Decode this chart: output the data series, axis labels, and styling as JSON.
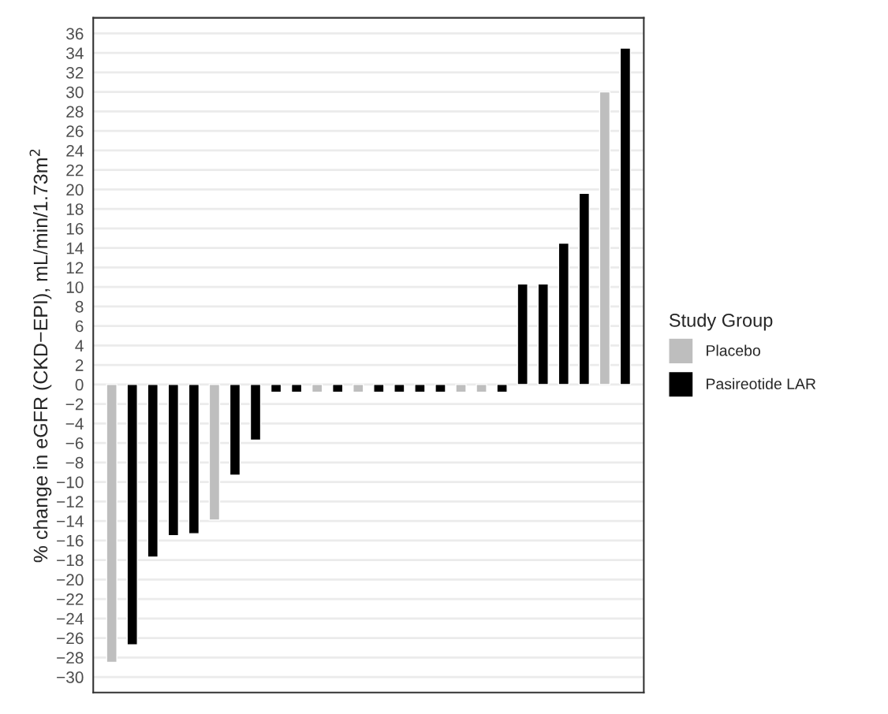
{
  "chart_data": {
    "type": "bar",
    "ylabel": "% change in eGFR (CKD−EPI), mL/min/1.73m$^{2}$",
    "legend_title": "Study Group",
    "categories": [
      null,
      null,
      null,
      null,
      null,
      null,
      null,
      null,
      null,
      null,
      null,
      null,
      null,
      null,
      null,
      null,
      null,
      null,
      null,
      null,
      null,
      null,
      null,
      null,
      null,
      null
    ],
    "series": [
      {
        "name": "Placebo",
        "color": "#bebebe",
        "values": [
          -28.5,
          null,
          null,
          null,
          null,
          -13.9,
          null,
          null,
          null,
          null,
          -0.8,
          null,
          -0.8,
          null,
          null,
          null,
          null,
          -0.8,
          -0.8,
          null,
          null,
          null,
          null,
          null,
          30.0,
          null
        ]
      },
      {
        "name": "Pasireotide LAR",
        "color": "#000000",
        "values": [
          null,
          -26.7,
          -17.7,
          -15.5,
          -15.3,
          null,
          -9.3,
          -5.7,
          -0.8,
          -0.8,
          null,
          -0.8,
          null,
          -0.8,
          -0.8,
          -0.8,
          -0.8,
          null,
          null,
          -0.8,
          10.3,
          10.3,
          14.5,
          19.6,
          null,
          34.5
        ]
      }
    ],
    "ylim": [
      -31.6,
      37.6
    ],
    "yticks": [
      {
        "value": -30,
        "label": "−30"
      },
      {
        "value": -28,
        "label": "−28"
      },
      {
        "value": -26,
        "label": "−26"
      },
      {
        "value": -24,
        "label": "−24"
      },
      {
        "value": -22,
        "label": "−22"
      },
      {
        "value": -20,
        "label": "−20"
      },
      {
        "value": -18,
        "label": "−18"
      },
      {
        "value": -16,
        "label": "−16"
      },
      {
        "value": -14,
        "label": "−14"
      },
      {
        "value": -12,
        "label": "−12"
      },
      {
        "value": -10,
        "label": "−10"
      },
      {
        "value": -8,
        "label": "−8"
      },
      {
        "value": -6,
        "label": "−6"
      },
      {
        "value": -4,
        "label": "−4"
      },
      {
        "value": -2,
        "label": "−2"
      },
      0,
      2,
      4,
      6,
      8,
      10,
      12,
      14,
      16,
      18,
      20,
      22,
      24,
      26,
      28,
      30,
      32,
      34,
      36
    ],
    "grid": "y",
    "legend": "right"
  }
}
